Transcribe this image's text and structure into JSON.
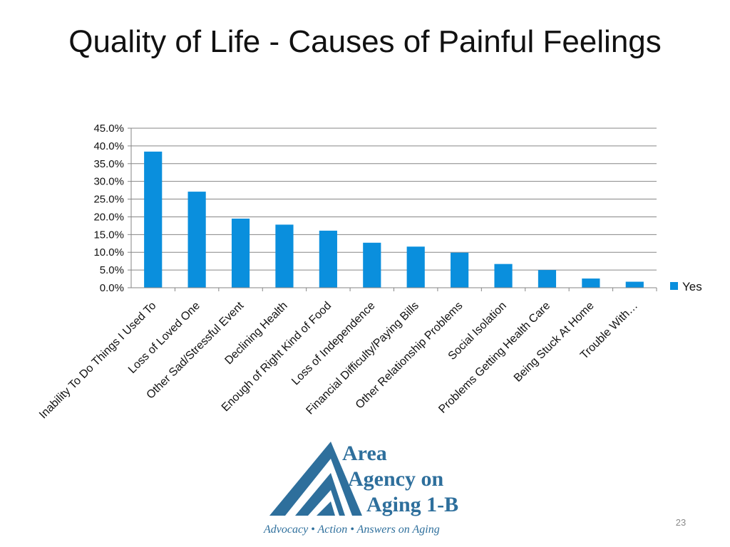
{
  "slide": {
    "title": "Quality of Life - Causes of Painful Feelings",
    "page_number": "23"
  },
  "logo": {
    "line1": "Area",
    "line2": "Agency on",
    "line3": "Aging 1-B",
    "tagline": "Advocacy • Action • Answers on Aging",
    "color": "#2e6f9c"
  },
  "chart_data": {
    "type": "bar",
    "categories": [
      "Inability To Do Things I Used To",
      "Loss of Loved One",
      "Other Sad/Stressful Event",
      "Declining Health",
      "Enough of Right Kind of Food",
      "Loss of Independence",
      "Financial Difficulty/Paying Bills",
      "Other Relationship Problems",
      "Social Isolation",
      "Problems Getting Health Care",
      "Being Stuck At Home",
      "Trouble With…"
    ],
    "series": [
      {
        "name": "Yes",
        "color": "#0a8fdd",
        "values": [
          0.384,
          0.271,
          0.195,
          0.178,
          0.161,
          0.127,
          0.116,
          0.099,
          0.067,
          0.05,
          0.026,
          0.017
        ]
      }
    ],
    "y_ticks": [
      "0.0%",
      "5.0%",
      "10.0%",
      "15.0%",
      "20.0%",
      "25.0%",
      "30.0%",
      "35.0%",
      "40.0%",
      "45.0%"
    ],
    "ylim": [
      0,
      0.45
    ],
    "grid": true,
    "legend": "right",
    "xlabel": "",
    "ylabel": ""
  }
}
